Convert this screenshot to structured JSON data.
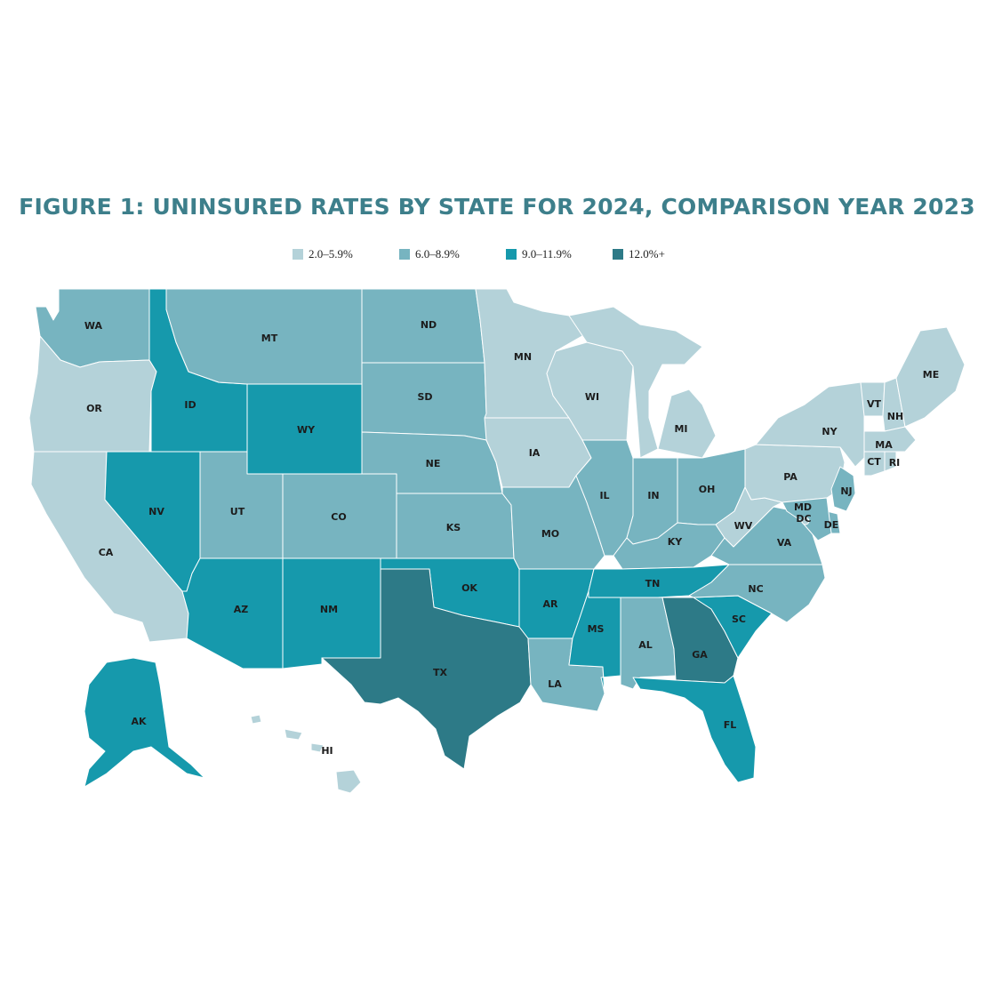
{
  "title": "FIGURE 1: UNINSURED RATES BY STATE FOR 2024, COMPARISON YEAR 2023",
  "legend": [
    {
      "label": "2.0–5.9%",
      "color": "#b4d2d9"
    },
    {
      "label": "6.0–8.9%",
      "color": "#77b4c0"
    },
    {
      "label": "9.0–11.9%",
      "color": "#1699ac"
    },
    {
      "label": "12.0%+",
      "color": "#2d7a87"
    }
  ],
  "states": [
    {
      "abbr": "WA",
      "category": "6.0–8.9%",
      "label": "WA"
    },
    {
      "abbr": "OR",
      "category": "2.0–5.9%",
      "label": "OR"
    },
    {
      "abbr": "CA",
      "category": "2.0–5.9%",
      "label": "CA"
    },
    {
      "abbr": "NV",
      "category": "9.0–11.9%",
      "label": "NV"
    },
    {
      "abbr": "ID",
      "category": "9.0–11.9%",
      "label": "ID"
    },
    {
      "abbr": "MT",
      "category": "6.0–8.9%",
      "label": "MT"
    },
    {
      "abbr": "WY",
      "category": "9.0–11.9%",
      "label": "WY"
    },
    {
      "abbr": "UT",
      "category": "6.0–8.9%",
      "label": "UT"
    },
    {
      "abbr": "AZ",
      "category": "9.0–11.9%",
      "label": "AZ"
    },
    {
      "abbr": "CO",
      "category": "6.0–8.9%",
      "label": "CO"
    },
    {
      "abbr": "NM",
      "category": "9.0–11.9%",
      "label": "NM"
    },
    {
      "abbr": "ND",
      "category": "6.0–8.9%",
      "label": "ND"
    },
    {
      "abbr": "SD",
      "category": "6.0–8.9%",
      "label": "SD"
    },
    {
      "abbr": "NE",
      "category": "6.0–8.9%",
      "label": "NE"
    },
    {
      "abbr": "KS",
      "category": "6.0–8.9%",
      "label": "KS"
    },
    {
      "abbr": "OK",
      "category": "9.0–11.9%",
      "label": "OK"
    },
    {
      "abbr": "TX",
      "category": "12.0%+",
      "label": "TX"
    },
    {
      "abbr": "MN",
      "category": "2.0–5.9%",
      "label": "MN"
    },
    {
      "abbr": "IA",
      "category": "2.0–5.9%",
      "label": "IA"
    },
    {
      "abbr": "MO",
      "category": "6.0–8.9%",
      "label": "MO"
    },
    {
      "abbr": "AR",
      "category": "9.0–11.9%",
      "label": "AR"
    },
    {
      "abbr": "LA",
      "category": "6.0–8.9%",
      "label": "LA"
    },
    {
      "abbr": "WI",
      "category": "2.0–5.9%",
      "label": "WI"
    },
    {
      "abbr": "IL",
      "category": "6.0–8.9%",
      "label": "IL"
    },
    {
      "abbr": "MI",
      "category": "2.0–5.9%",
      "label": "MI"
    },
    {
      "abbr": "IN",
      "category": "6.0–8.9%",
      "label": "IN"
    },
    {
      "abbr": "OH",
      "category": "6.0–8.9%",
      "label": "OH"
    },
    {
      "abbr": "KY",
      "category": "6.0–8.9%",
      "label": "KY"
    },
    {
      "abbr": "TN",
      "category": "9.0–11.9%",
      "label": "TN"
    },
    {
      "abbr": "MS",
      "category": "9.0–11.9%",
      "label": "MS"
    },
    {
      "abbr": "AL",
      "category": "6.0–8.9%",
      "label": "AL"
    },
    {
      "abbr": "GA",
      "category": "12.0%+",
      "label": "GA"
    },
    {
      "abbr": "FL",
      "category": "9.0–11.9%",
      "label": "FL"
    },
    {
      "abbr": "SC",
      "category": "9.0–11.9%",
      "label": "SC"
    },
    {
      "abbr": "NC",
      "category": "6.0–8.9%",
      "label": "NC"
    },
    {
      "abbr": "VA",
      "category": "6.0–8.9%",
      "label": "VA"
    },
    {
      "abbr": "WV",
      "category": "2.0–5.9%",
      "label": "WV"
    },
    {
      "abbr": "PA",
      "category": "2.0–5.9%",
      "label": "PA"
    },
    {
      "abbr": "NY",
      "category": "2.0–5.9%",
      "label": "NY"
    },
    {
      "abbr": "VT",
      "category": "2.0–5.9%",
      "label": "VT"
    },
    {
      "abbr": "NH",
      "category": "2.0–5.9%",
      "label": "NH"
    },
    {
      "abbr": "ME",
      "category": "2.0–5.9%",
      "label": "ME"
    },
    {
      "abbr": "MA",
      "category": "2.0–5.9%",
      "label": "MA"
    },
    {
      "abbr": "CT",
      "category": "2.0–5.9%",
      "label": "CT"
    },
    {
      "abbr": "RI",
      "category": "2.0–5.9%",
      "label": "RI"
    },
    {
      "abbr": "NJ",
      "category": "6.0–8.9%",
      "label": "NJ"
    },
    {
      "abbr": "DE",
      "category": "6.0–8.9%",
      "label": "DE"
    },
    {
      "abbr": "MD",
      "category": "6.0–8.9%",
      "label": "MD"
    },
    {
      "abbr": "DC",
      "category": "2.0–5.9%",
      "label": "DC"
    },
    {
      "abbr": "AK",
      "category": "9.0–11.9%",
      "label": "AK"
    },
    {
      "abbr": "HI",
      "category": "2.0–5.9%",
      "label": "HI"
    }
  ]
}
